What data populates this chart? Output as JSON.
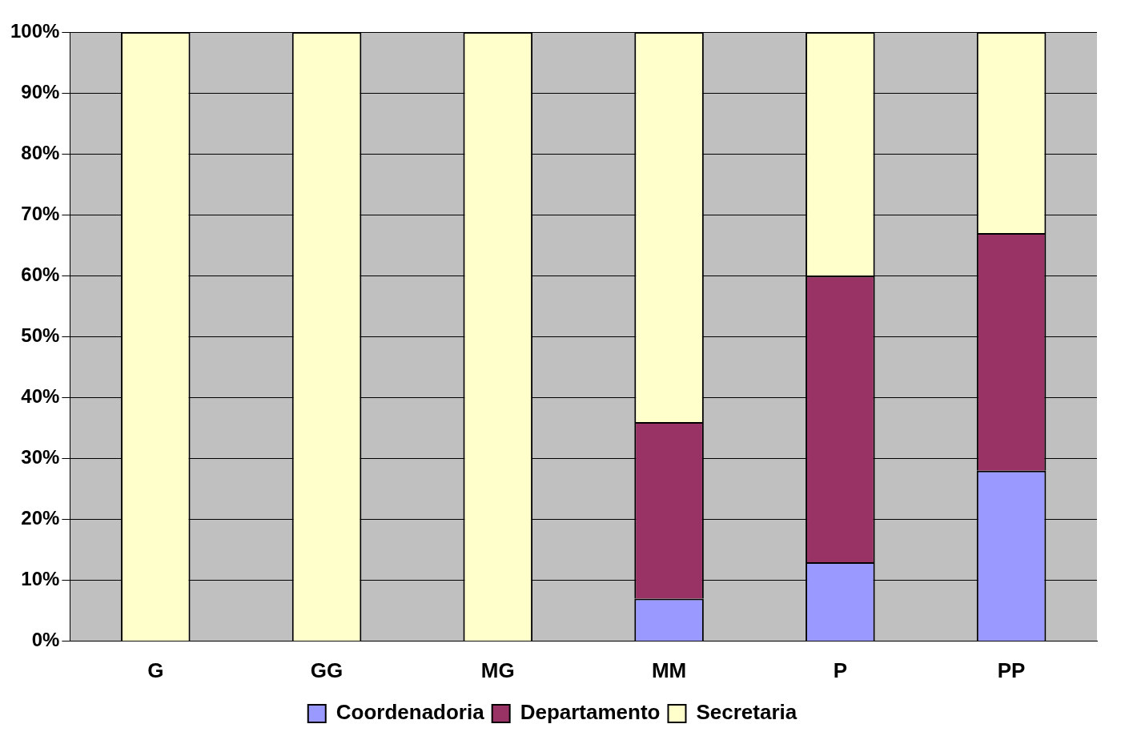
{
  "chart_data": {
    "type": "bar",
    "stacked": true,
    "categories": [
      "G",
      "GG",
      "MG",
      "MM",
      "P",
      "PP"
    ],
    "series": [
      {
        "name": "Coordenadoria",
        "color": "#9999ff",
        "values": [
          0,
          0,
          0,
          7,
          13,
          28
        ]
      },
      {
        "name": "Departamento",
        "color": "#993366",
        "values": [
          0,
          0,
          0,
          29,
          47,
          39
        ]
      },
      {
        "name": "Secretaria",
        "color": "#ffffcc",
        "values": [
          100,
          100,
          100,
          64,
          40,
          33
        ]
      }
    ],
    "ylim": [
      0,
      100
    ],
    "yticks": [
      {
        "value": 0,
        "label": "0%"
      },
      {
        "value": 10,
        "label": "10%"
      },
      {
        "value": 20,
        "label": "20%"
      },
      {
        "value": 30,
        "label": "30%"
      },
      {
        "value": 40,
        "label": "40%"
      },
      {
        "value": 50,
        "label": "50%"
      },
      {
        "value": 60,
        "label": "60%"
      },
      {
        "value": 70,
        "label": "70%"
      },
      {
        "value": 80,
        "label": "80%"
      },
      {
        "value": 90,
        "label": "90%"
      },
      {
        "value": 100,
        "label": "100%"
      }
    ],
    "grid": "y",
    "legend": "bottom"
  }
}
